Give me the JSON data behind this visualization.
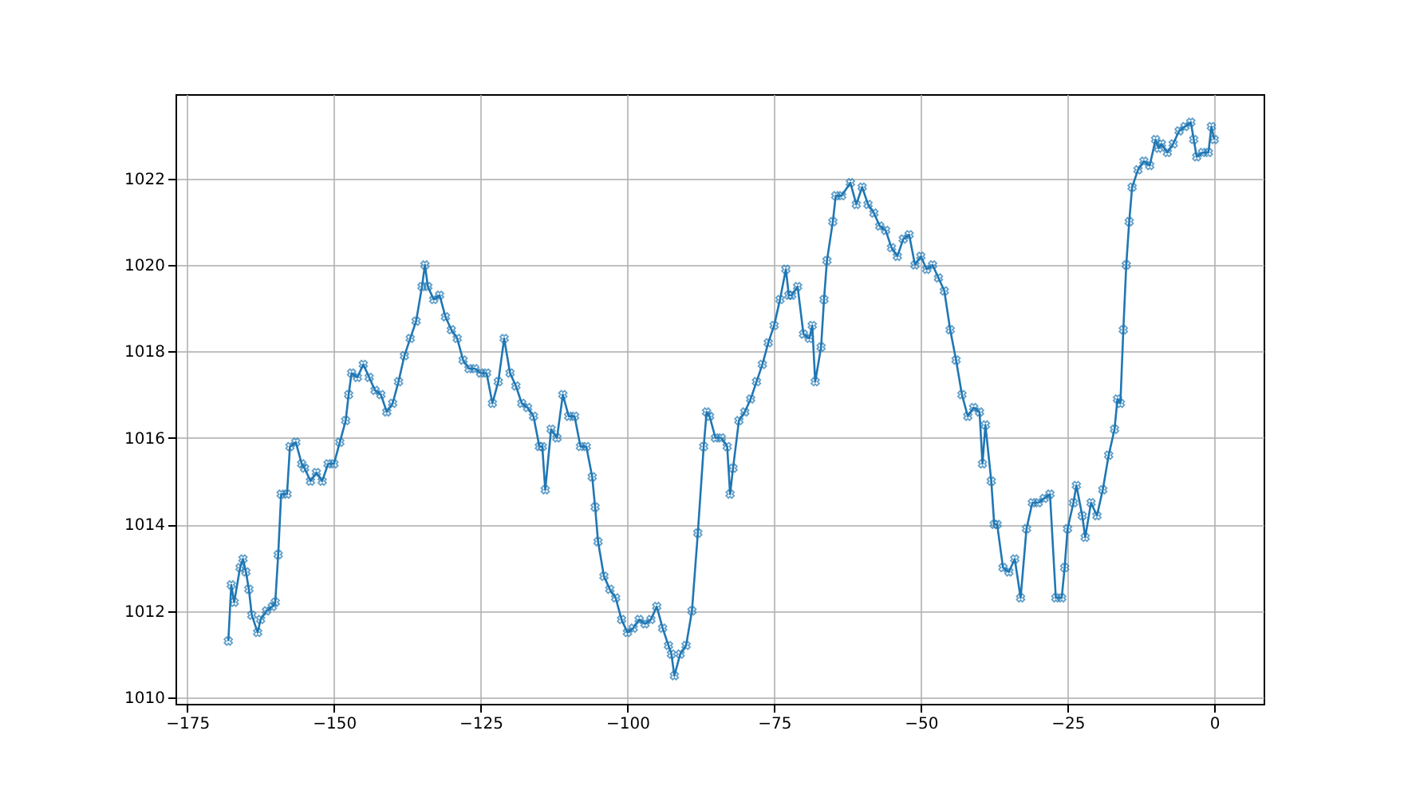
{
  "chart_data": {
    "type": "line",
    "marker": "cross",
    "line_style": "solid",
    "grid": true,
    "xlim": [
      -177,
      8.4
    ],
    "ylim": [
      1009.85,
      1023.95
    ],
    "xticks": [
      -175,
      -150,
      -125,
      -100,
      -75,
      -50,
      -25,
      0
    ],
    "yticks": [
      1010,
      1012,
      1014,
      1016,
      1018,
      1020,
      1022
    ],
    "x": [
      -168,
      -167.5,
      -167,
      -166,
      -165.5,
      -165,
      -164.5,
      -164,
      -163,
      -162.5,
      -161.5,
      -160.5,
      -160,
      -159.5,
      -159,
      -158,
      -157.5,
      -156.5,
      -155.5,
      -155,
      -154,
      -153,
      -152,
      -151,
      -150,
      -149,
      -148,
      -147.5,
      -147,
      -146,
      -145,
      -144,
      -143,
      -142,
      -141,
      -140,
      -139,
      -138,
      -137,
      -136,
      -135,
      -134.5,
      -134,
      -133,
      -132,
      -131,
      -130,
      -129,
      -128,
      -127,
      -126,
      -125,
      -124,
      -123,
      -122,
      -121,
      -120,
      -119,
      -118,
      -117,
      -116,
      -115,
      -114.5,
      -114,
      -113,
      -112,
      -111,
      -110,
      -109,
      -108,
      -107,
      -106,
      -105.5,
      -105,
      -104,
      -103,
      -102,
      -101,
      -100,
      -99,
      -98,
      -97,
      -96,
      -95,
      -94,
      -93,
      -92.5,
      -92,
      -91,
      -90,
      -89,
      -88,
      -87,
      -86.5,
      -86,
      -85,
      -84,
      -83,
      -82.5,
      -82,
      -81,
      -80,
      -79,
      -78,
      -77,
      -76,
      -75,
      -74,
      -73,
      -72.5,
      -72,
      -71,
      -70,
      -69,
      -68.5,
      -68,
      -67,
      -66.5,
      -66,
      -65,
      -64.5,
      -63.5,
      -62,
      -61,
      -60,
      -59,
      -58,
      -57,
      -56,
      -55,
      -54,
      -53,
      -52,
      -51,
      -50,
      -49,
      -48,
      -47,
      -46,
      -45,
      -44,
      -43,
      -42,
      -41,
      -40,
      -39.5,
      -39,
      -38,
      -37.5,
      -37,
      -36,
      -35,
      -34,
      -33,
      -32,
      -31,
      -30,
      -29,
      -28,
      -27,
      -26,
      -25.5,
      -25,
      -24,
      -23.5,
      -22.5,
      -22,
      -21,
      -20,
      -19,
      -18,
      -17,
      -16.5,
      -16,
      -15.5,
      -15,
      -14.5,
      -14,
      -13,
      -12,
      -11,
      -10,
      -9.5,
      -9,
      -8,
      -7,
      -6,
      -5,
      -4,
      -3.5,
      -3,
      -2,
      -1,
      -0.5,
      0
    ],
    "series": [
      {
        "color": "#1f77b4",
        "values": [
          1011.3,
          1012.6,
          1012.2,
          1013.0,
          1013.2,
          1012.9,
          1012.5,
          1011.9,
          1011.5,
          1011.8,
          1012.0,
          1012.1,
          1012.2,
          1013.3,
          1014.7,
          1014.7,
          1015.8,
          1015.9,
          1015.4,
          1015.3,
          1015.0,
          1015.2,
          1015.0,
          1015.4,
          1015.4,
          1015.9,
          1016.4,
          1017.0,
          1017.5,
          1017.4,
          1017.7,
          1017.4,
          1017.1,
          1017.0,
          1016.6,
          1016.8,
          1017.3,
          1017.9,
          1018.3,
          1018.7,
          1019.5,
          1020.0,
          1019.5,
          1019.2,
          1019.3,
          1018.8,
          1018.5,
          1018.3,
          1017.8,
          1017.6,
          1017.6,
          1017.5,
          1017.5,
          1016.8,
          1017.3,
          1018.3,
          1017.5,
          1017.2,
          1016.8,
          1016.7,
          1016.5,
          1015.8,
          1015.8,
          1014.8,
          1016.2,
          1016.0,
          1017.0,
          1016.5,
          1016.5,
          1015.8,
          1015.8,
          1015.1,
          1014.4,
          1013.6,
          1012.8,
          1012.5,
          1012.3,
          1011.8,
          1011.5,
          1011.6,
          1011.8,
          1011.7,
          1011.8,
          1012.1,
          1011.6,
          1011.2,
          1011.0,
          1010.5,
          1011.0,
          1011.2,
          1012.0,
          1013.8,
          1015.8,
          1016.6,
          1016.5,
          1016.0,
          1016.0,
          1015.8,
          1014.7,
          1015.3,
          1016.4,
          1016.6,
          1016.9,
          1017.3,
          1017.7,
          1018.2,
          1018.6,
          1019.2,
          1019.9,
          1019.3,
          1019.3,
          1019.5,
          1018.4,
          1018.3,
          1018.6,
          1017.3,
          1018.1,
          1019.2,
          1020.1,
          1021.0,
          1021.6,
          1021.6,
          1021.9,
          1021.4,
          1021.8,
          1021.4,
          1021.2,
          1020.9,
          1020.8,
          1020.4,
          1020.2,
          1020.6,
          1020.7,
          1020.0,
          1020.2,
          1019.9,
          1020.0,
          1019.7,
          1019.4,
          1018.5,
          1017.8,
          1017.0,
          1016.5,
          1016.7,
          1016.6,
          1015.4,
          1016.3,
          1015.0,
          1014.0,
          1014.0,
          1013.0,
          1012.9,
          1013.2,
          1012.3,
          1013.9,
          1014.5,
          1014.5,
          1014.6,
          1014.7,
          1012.3,
          1012.3,
          1013.0,
          1013.9,
          1014.5,
          1014.9,
          1014.2,
          1013.7,
          1014.5,
          1014.2,
          1014.8,
          1015.6,
          1016.2,
          1016.9,
          1016.8,
          1018.5,
          1020.0,
          1021.0,
          1021.8,
          1022.2,
          1022.4,
          1022.3,
          1022.9,
          1022.7,
          1022.8,
          1022.6,
          1022.8,
          1023.1,
          1023.2,
          1023.3,
          1022.9,
          1022.5,
          1022.6,
          1022.6,
          1023.2,
          1022.9
        ]
      }
    ]
  }
}
